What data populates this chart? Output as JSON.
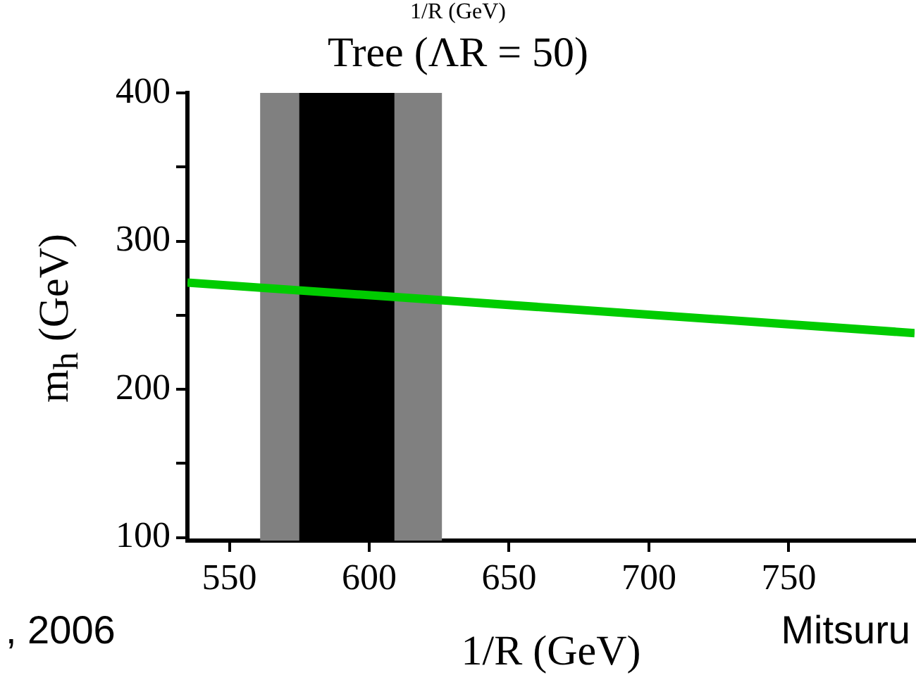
{
  "chart_data": {
    "type": "line",
    "title": "Tree (ΛR = 50)",
    "xlabel": "1/R (GeV)",
    "ylabel": "m$_{h}$ (GeV)",
    "annotations": [
      "1/R (GeV)",
      ", 2006",
      "Mitsuru"
    ],
    "series": [
      {
        "color": "#00cc00",
        "x": [
          535,
          795
        ],
        "values": [
          272,
          238
        ]
      }
    ],
    "bands": [
      {
        "axis": "x",
        "from": 561,
        "to": 626,
        "color": "#808080"
      },
      {
        "axis": "x",
        "from": 575,
        "to": 609,
        "color": "#000000"
      }
    ],
    "xlim": [
      535,
      795
    ],
    "xticks": [
      550,
      600,
      650,
      700,
      750
    ],
    "ylim": [
      98,
      400
    ],
    "yticks": [
      100,
      {
        "value": 150,
        "label": null
      },
      200,
      {
        "value": 250,
        "label": null
      },
      300,
      {
        "value": 350,
        "label": null
      },
      400
    ],
    "grid": false,
    "legend": false,
    "marker": "none",
    "line_style": "solid"
  }
}
